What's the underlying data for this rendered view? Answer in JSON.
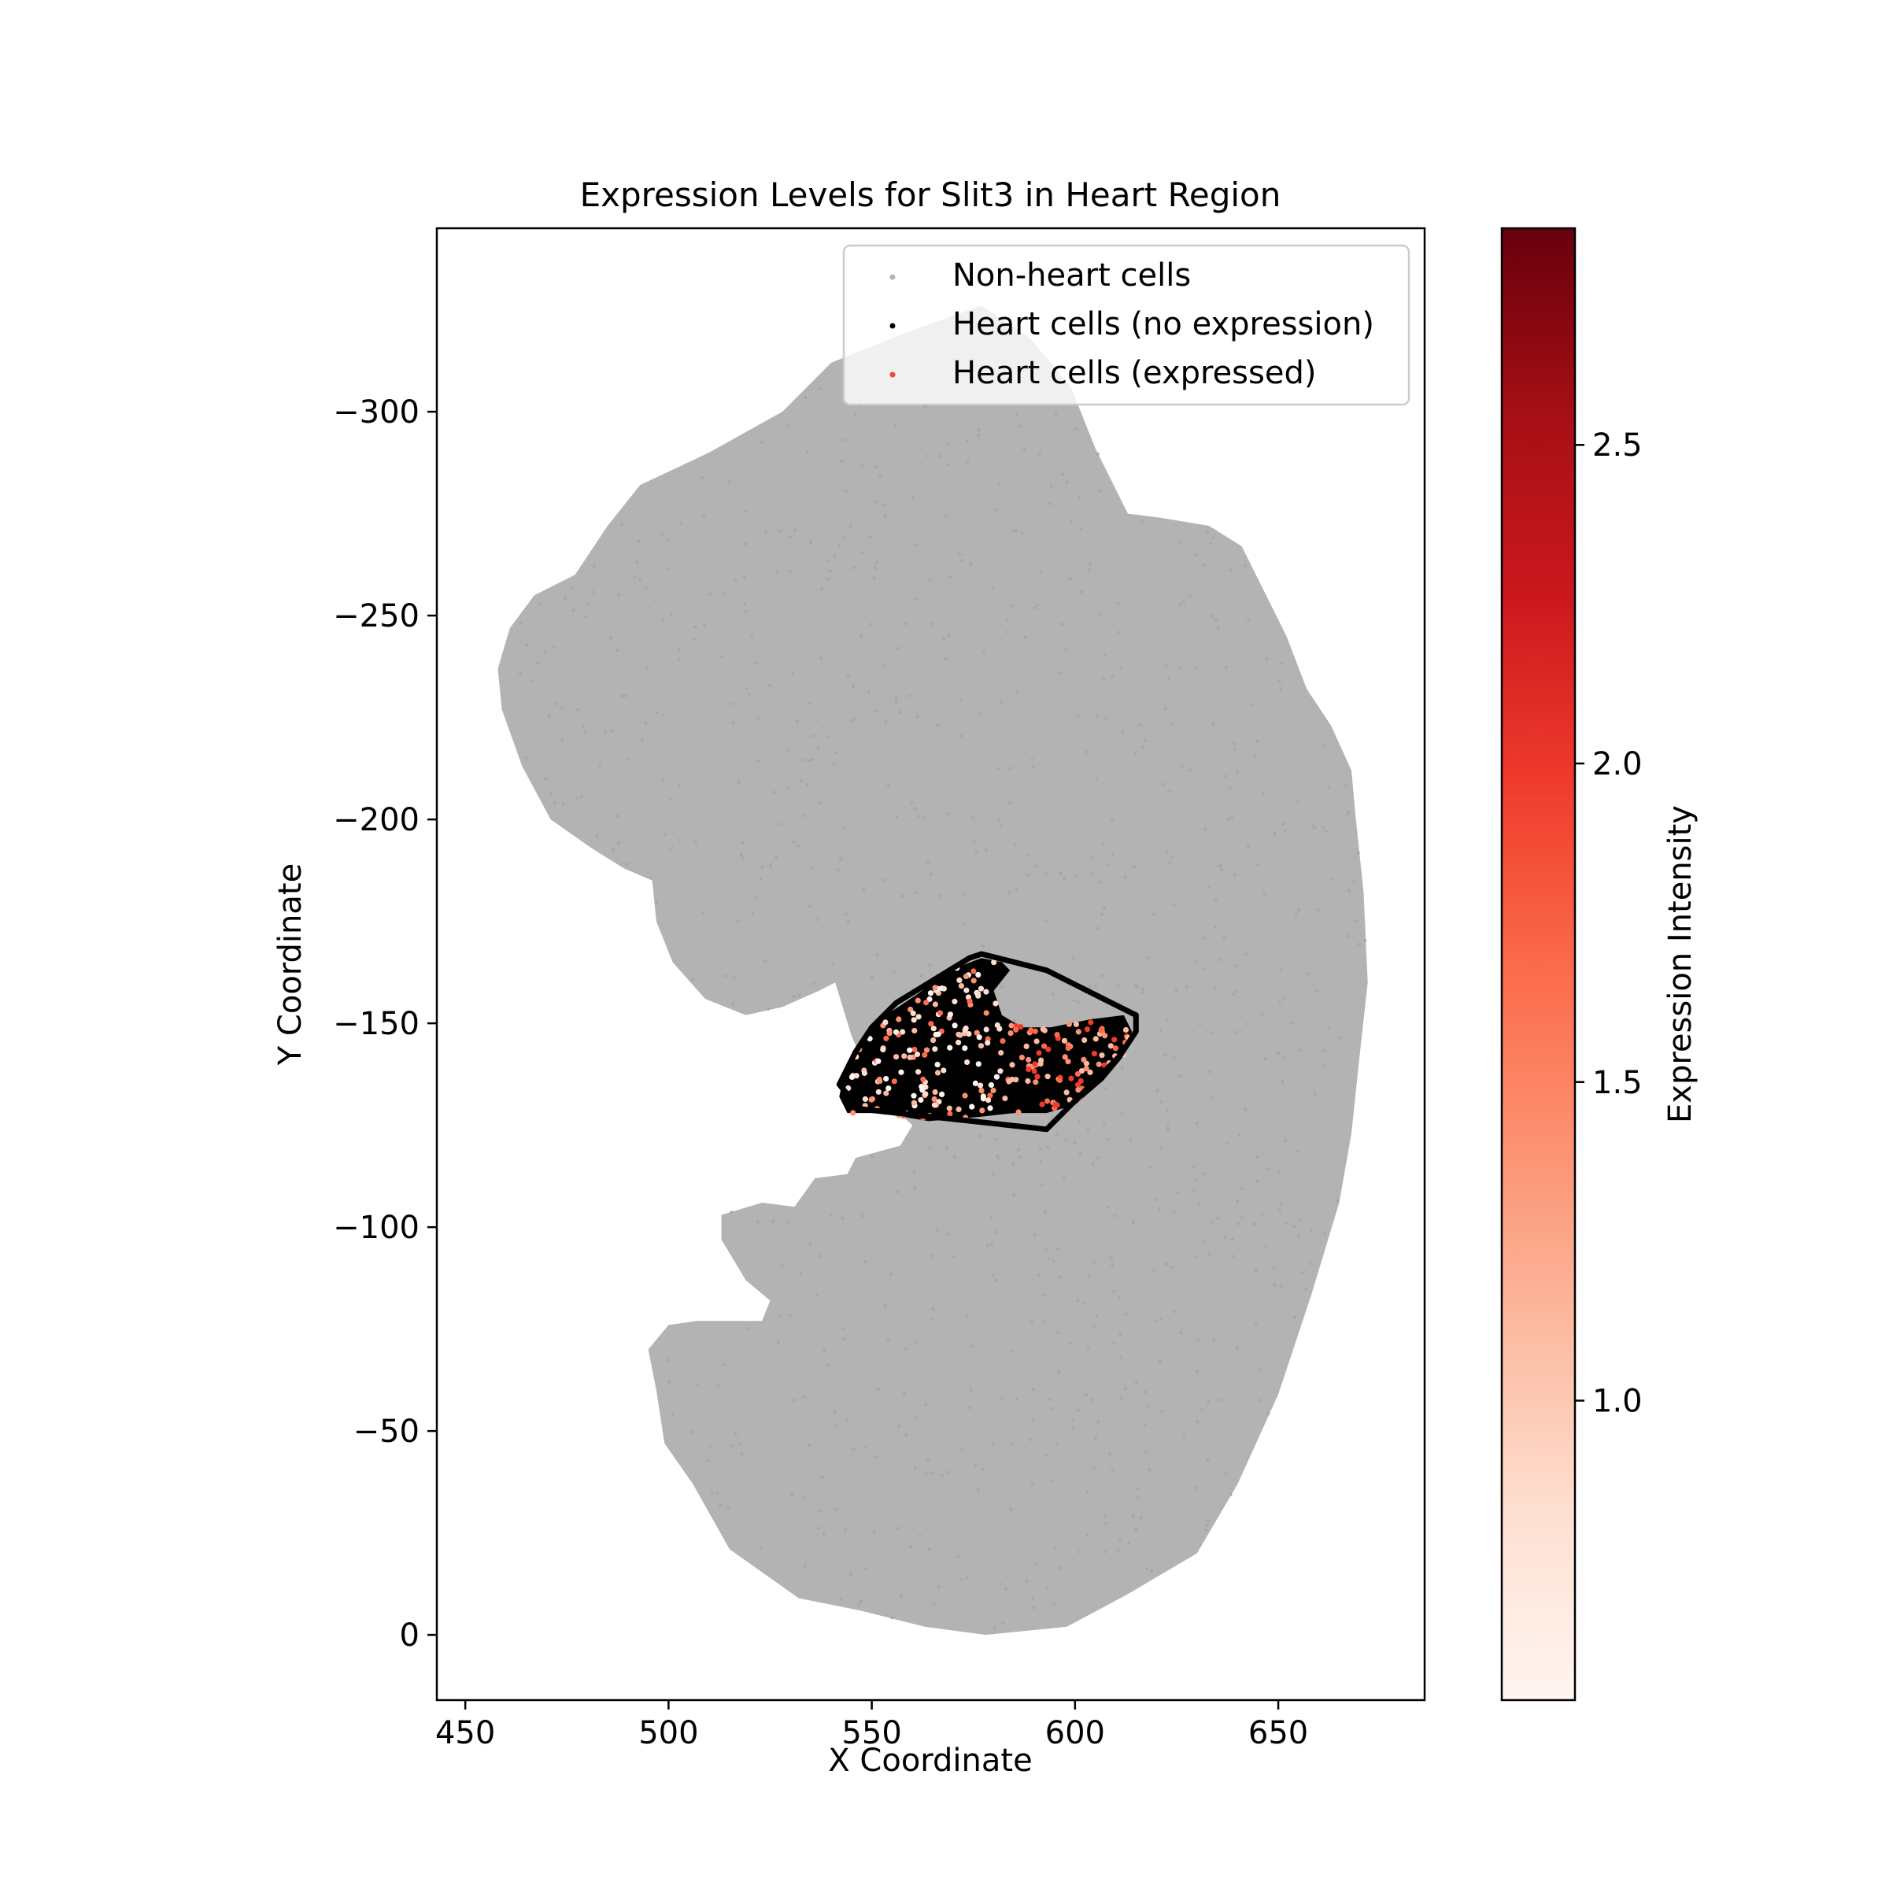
{
  "chart_data": {
    "type": "scatter",
    "title": "Expression Levels for Slit3 in Heart Region",
    "xlabel": "X Coordinate",
    "ylabel": "Y Coordinate",
    "xlim": [
      443,
      686
    ],
    "ylim": [
      16,
      -345
    ],
    "y_inverted": true,
    "x_ticks": [
      450,
      500,
      550,
      600,
      650
    ],
    "y_ticks": [
      -300,
      -250,
      -200,
      -150,
      -100,
      -50,
      0
    ],
    "x_tick_labels": [
      "450",
      "500",
      "550",
      "600",
      "650"
    ],
    "y_tick_labels": [
      "−300",
      "−250",
      "−200",
      "−150",
      "−100",
      "−50",
      "0"
    ],
    "grid": false,
    "legend_position": "top-right",
    "series": [
      {
        "name": "Non-heart cells",
        "color": "#b3b3b3",
        "region_outline": [
          [
            577,
            -326
          ],
          [
            560,
            -320
          ],
          [
            540,
            -312
          ],
          [
            528,
            -300
          ],
          [
            510,
            -290
          ],
          [
            493,
            -282
          ],
          [
            485,
            -272
          ],
          [
            477,
            -260
          ],
          [
            467,
            -255
          ],
          [
            461,
            -247
          ],
          [
            458,
            -237
          ],
          [
            459,
            -227
          ],
          [
            464,
            -213
          ],
          [
            471,
            -200
          ],
          [
            481,
            -193
          ],
          [
            489,
            -188
          ],
          [
            496,
            -185
          ],
          [
            497,
            -175
          ],
          [
            501,
            -165
          ],
          [
            509,
            -156
          ],
          [
            519,
            -152
          ],
          [
            528,
            -154
          ],
          [
            537,
            -158
          ],
          [
            541,
            -160
          ],
          [
            545,
            -147
          ],
          [
            551,
            -133
          ],
          [
            560,
            -125
          ],
          [
            557,
            -120
          ],
          [
            546,
            -117
          ],
          [
            544,
            -113
          ],
          [
            536,
            -112
          ],
          [
            531,
            -105
          ],
          [
            523,
            -106
          ],
          [
            513,
            -103
          ],
          [
            513,
            -97
          ],
          [
            519,
            -87
          ],
          [
            525,
            -82
          ],
          [
            523,
            -77
          ],
          [
            507,
            -77
          ],
          [
            500,
            -76
          ],
          [
            495,
            -70
          ],
          [
            497,
            -60
          ],
          [
            499,
            -47
          ],
          [
            506,
            -37
          ],
          [
            515,
            -21
          ],
          [
            532,
            -9
          ],
          [
            547,
            -6
          ],
          [
            563,
            -2
          ],
          [
            578,
            0
          ],
          [
            598,
            -2
          ],
          [
            613,
            -10
          ],
          [
            630,
            -20
          ],
          [
            640,
            -37
          ],
          [
            650,
            -59
          ],
          [
            658,
            -83
          ],
          [
            665,
            -106
          ],
          [
            668,
            -123
          ],
          [
            670,
            -142
          ],
          [
            672,
            -160
          ],
          [
            671,
            -182
          ],
          [
            669,
            -201
          ],
          [
            668,
            -212
          ],
          [
            663,
            -223
          ],
          [
            657,
            -232
          ],
          [
            652,
            -245
          ],
          [
            646,
            -257
          ],
          [
            641,
            -267
          ],
          [
            633,
            -272
          ],
          [
            621,
            -274
          ],
          [
            613,
            -275
          ],
          [
            605,
            -291
          ],
          [
            599,
            -306
          ],
          [
            589,
            -318
          ],
          [
            577,
            -326
          ]
        ]
      },
      {
        "name": "Heart cells (no expression)",
        "color": "#000000",
        "region_outline": [
          [
            577,
            -166
          ],
          [
            569,
            -163
          ],
          [
            561,
            -157
          ],
          [
            552,
            -151
          ],
          [
            547,
            -144
          ],
          [
            543,
            -137
          ],
          [
            542,
            -132
          ],
          [
            544,
            -128
          ],
          [
            552,
            -128
          ],
          [
            564,
            -126
          ],
          [
            576,
            -127
          ],
          [
            585,
            -128
          ],
          [
            593,
            -128
          ],
          [
            600,
            -130
          ],
          [
            607,
            -136
          ],
          [
            612,
            -142
          ],
          [
            614,
            -148
          ],
          [
            612,
            -152
          ],
          [
            604,
            -151
          ],
          [
            594,
            -149
          ],
          [
            587,
            -149
          ],
          [
            582,
            -152
          ],
          [
            580,
            -158
          ],
          [
            584,
            -163
          ],
          [
            582,
            -165
          ]
        ]
      },
      {
        "name": "Heart cells (expressed)",
        "color": "#f14432",
        "cmap": "Reds",
        "value_range": [
          0.53,
          2.84
        ]
      }
    ],
    "hull": [
      [
        577,
        -167
      ],
      [
        593,
        -163
      ],
      [
        615,
        -152
      ],
      [
        615,
        -148
      ],
      [
        611,
        -142
      ],
      [
        593,
        -124
      ],
      [
        547,
        -129
      ],
      [
        542,
        -135
      ],
      [
        546,
        -143
      ],
      [
        550,
        -149
      ],
      [
        556,
        -155
      ],
      [
        574,
        -166
      ]
    ],
    "colorbar": {
      "label": "Expression Intensity",
      "range": [
        0.53,
        2.84
      ],
      "ticks": [
        1.0,
        1.5,
        2.0,
        2.5
      ],
      "tick_labels": [
        "1.0",
        "1.5",
        "2.0",
        "2.5"
      ]
    }
  }
}
